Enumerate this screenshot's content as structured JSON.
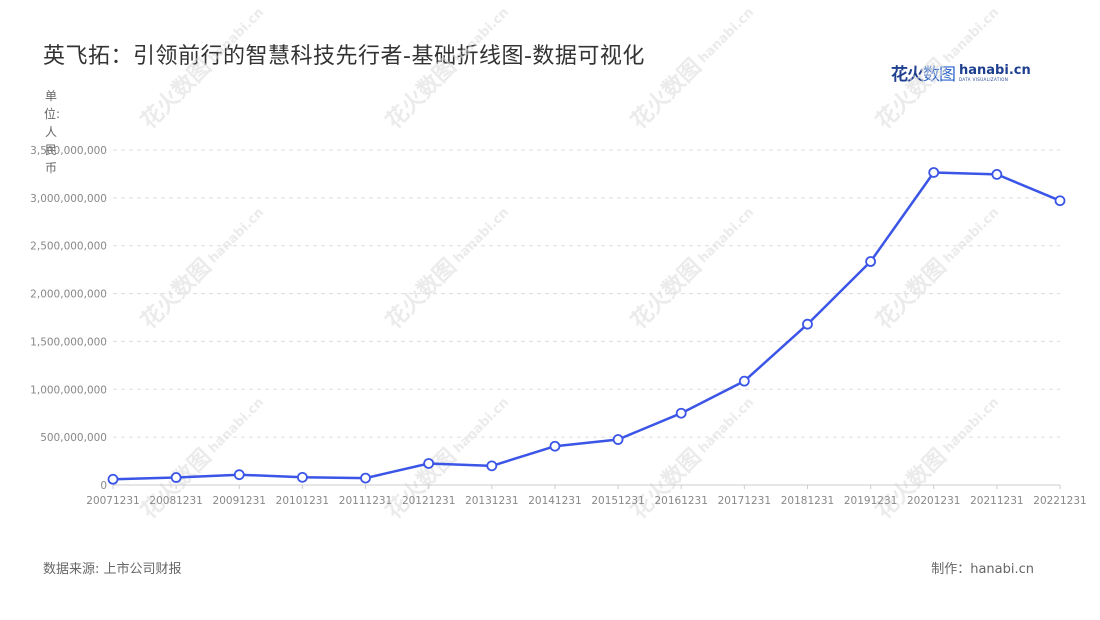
{
  "title": "英飞拓：引领前行的智慧科技先行者-基础折线图-数据可视化",
  "logo": {
    "cn_main": "花火",
    "cn_accent": "数图",
    "en_main": "hanabi.cn",
    "en_sub": "DATA VISUALIZATION"
  },
  "unit_label": "单位:人民币",
  "source": "数据来源: 上市公司财报",
  "maker": "制作：hanabi.cn",
  "watermark": {
    "cn": "花火数图",
    "en": "hanabi.cn"
  },
  "colors": {
    "line": "#3b55e6",
    "grid": "#dddddd",
    "axis_text": "#888888"
  },
  "chart_data": {
    "type": "line",
    "title": "英飞拓：引领前行的智慧科技先行者-基础折线图-数据可视化",
    "xlabel": "",
    "ylabel": "单位:人民币",
    "ylim": [
      0,
      3500000000
    ],
    "yticks": [
      0,
      500000000,
      1000000000,
      1500000000,
      2000000000,
      2500000000,
      3000000000,
      3500000000
    ],
    "ytick_labels": [
      "0",
      "500,000,000",
      "1,000,000,000",
      "1,500,000,000",
      "2,000,000,000",
      "2,500,000,000",
      "3,000,000,000",
      "3,500,000,000"
    ],
    "grid": true,
    "categories": [
      "20071231",
      "20081231",
      "20091231",
      "20101231",
      "20111231",
      "20121231",
      "20131231",
      "20141231",
      "20151231",
      "20161231",
      "20171231",
      "20181231",
      "20191231",
      "20201231",
      "20211231",
      "20221231"
    ],
    "series": [
      {
        "values": [
          60000000,
          78000000,
          108000000,
          80000000,
          72000000,
          225000000,
          200000000,
          405000000,
          475000000,
          750000000,
          1085000000,
          1680000000,
          2335000000,
          3265000000,
          3245000000,
          2970000000
        ]
      }
    ]
  }
}
